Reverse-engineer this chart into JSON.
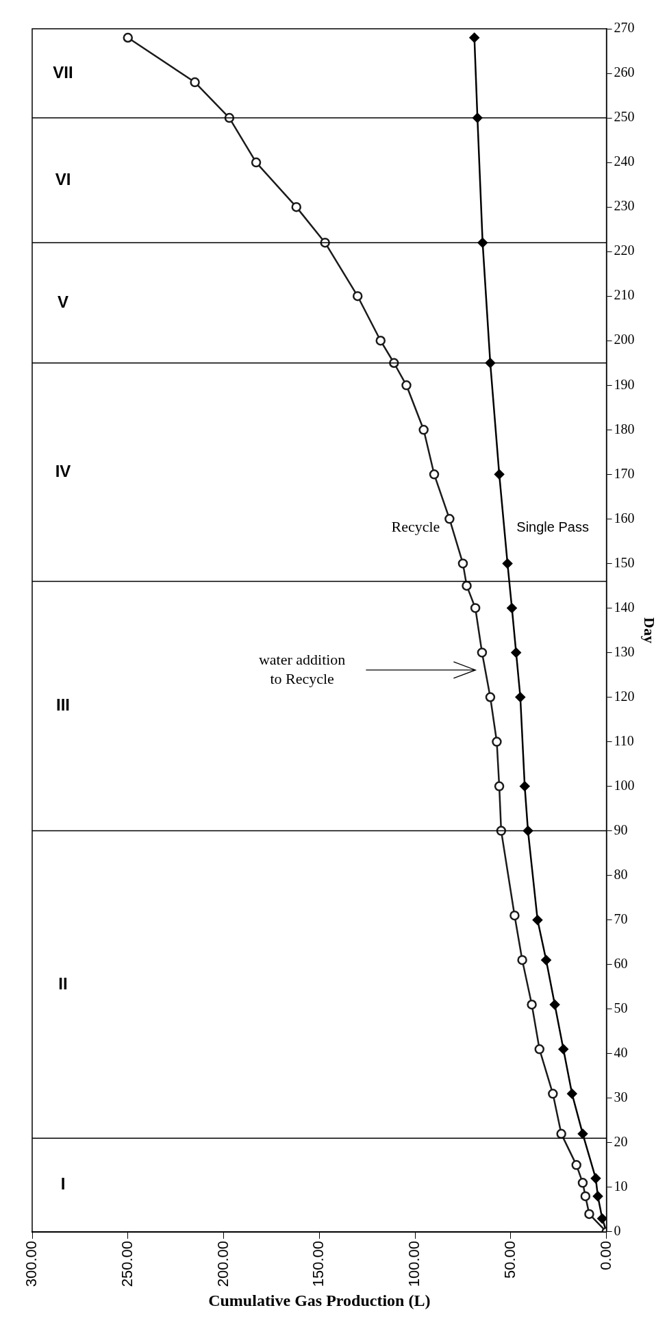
{
  "chart_data": {
    "type": "line",
    "xlabel": "Cumulative Gas Production (L)",
    "ylabel": "Day",
    "xlim": [
      300,
      0
    ],
    "xticks": [
      {
        "value": 300,
        "label": "300.00"
      },
      {
        "value": 250,
        "label": "250.00"
      },
      {
        "value": 200,
        "label": "200.00"
      },
      {
        "value": 150,
        "label": "150.00"
      },
      {
        "value": 100,
        "label": "100.00"
      },
      {
        "value": 50,
        "label": "50.00"
      },
      {
        "value": 0,
        "label": "0.00"
      }
    ],
    "ylim": [
      0,
      270
    ],
    "yticks": [
      0,
      10,
      20,
      30,
      40,
      50,
      60,
      70,
      80,
      90,
      100,
      110,
      120,
      130,
      140,
      150,
      160,
      170,
      180,
      190,
      200,
      210,
      220,
      230,
      240,
      250,
      260,
      270
    ],
    "legend": false,
    "line_style": "solid",
    "series": [
      {
        "name": "Recycle",
        "color": "#1a1a1a",
        "marker": "circle",
        "x": [
          0,
          9,
          11,
          12.4,
          15.7,
          23.6,
          28,
          35,
          39,
          44,
          48,
          55,
          56,
          57.3,
          60.7,
          65,
          68.5,
          73,
          75,
          82,
          90,
          95.5,
          104.5,
          111,
          118,
          130,
          147,
          162,
          183,
          197,
          215,
          250
        ],
        "values": [
          0,
          4,
          8,
          11,
          15,
          22,
          31,
          41,
          51,
          61,
          71,
          90,
          100,
          110,
          120,
          130,
          140,
          145,
          150,
          160,
          170,
          180,
          190,
          195,
          200,
          210,
          222,
          230,
          240,
          250,
          258,
          268
        ]
      },
      {
        "name": "Single Pass",
        "color": "#000000",
        "marker": "diamond",
        "x": [
          0,
          2.2,
          4.5,
          5.6,
          12.4,
          18,
          22.5,
          27,
          31.5,
          36,
          41,
          42.7,
          45,
          47.2,
          49.4,
          51.7,
          56,
          60.7,
          64.7,
          67.4,
          69
        ],
        "values": [
          0,
          3,
          8,
          12,
          22,
          31,
          41,
          51,
          61,
          70,
          90,
          100,
          120,
          130,
          140,
          150,
          170,
          195,
          222,
          250,
          268
        ]
      }
    ],
    "ref_lines": [
      {
        "axis": "y",
        "value": 21
      },
      {
        "axis": "y",
        "value": 90
      },
      {
        "axis": "y",
        "value": 146
      },
      {
        "axis": "y",
        "value": 195
      },
      {
        "axis": "y",
        "value": 222
      },
      {
        "axis": "y",
        "value": 250
      }
    ],
    "annotations": [
      "I",
      "II",
      "III",
      "IV",
      "V",
      "VI",
      "VII",
      "water addition\nto Recycle"
    ]
  }
}
